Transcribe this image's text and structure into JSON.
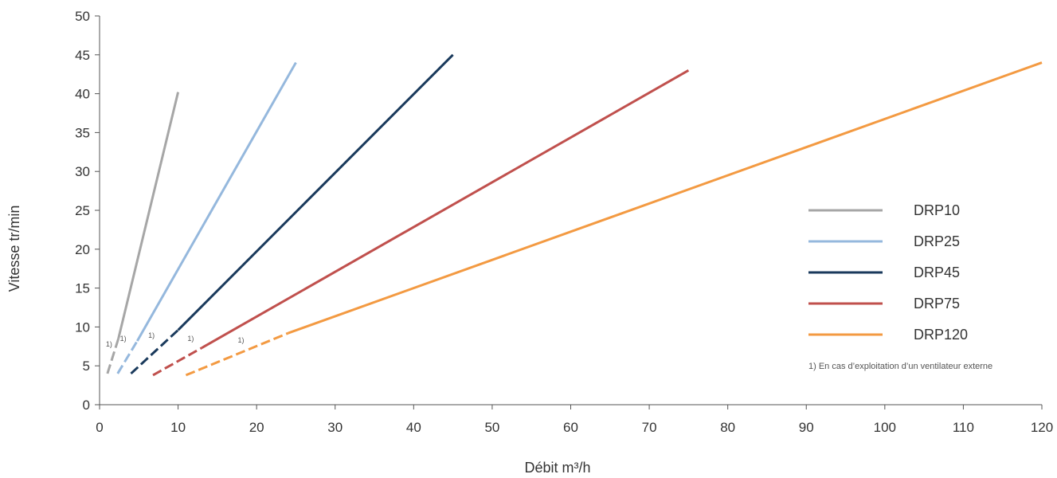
{
  "chart_data": {
    "type": "line",
    "xlabel": "Débit m³/h",
    "ylabel": "Vitesse tr/min",
    "xlim": [
      0,
      120
    ],
    "ylim": [
      0,
      50
    ],
    "x_ticks": [
      0,
      10,
      20,
      30,
      40,
      50,
      60,
      70,
      80,
      90,
      100,
      110,
      120
    ],
    "y_ticks": [
      0,
      5,
      10,
      15,
      20,
      25,
      30,
      35,
      40,
      45,
      50
    ],
    "grid": false,
    "legend_position": "right",
    "series": [
      {
        "name": "DRP10",
        "color": "#a6a6a6",
        "dashed": {
          "x": [
            1,
            2.4
          ],
          "y": [
            4,
            8.5
          ]
        },
        "solid": {
          "x": [
            2.4,
            10
          ],
          "y": [
            8.5,
            40.2
          ]
        },
        "marker": {
          "x": 0.8,
          "y": 7.5,
          "text": "1)"
        }
      },
      {
        "name": "DRP25",
        "color": "#95b8dd",
        "dashed": {
          "x": [
            2.3,
            4.8
          ],
          "y": [
            4,
            8.2
          ]
        },
        "solid": {
          "x": [
            4.8,
            25
          ],
          "y": [
            8.2,
            44
          ]
        },
        "marker": {
          "x": 2.6,
          "y": 8.2,
          "text": "1)"
        }
      },
      {
        "name": "DRP45",
        "color": "#1a3a5c",
        "dashed": {
          "x": [
            4,
            10
          ],
          "y": [
            4,
            9.6
          ]
        },
        "solid": {
          "x": [
            10,
            45
          ],
          "y": [
            9.6,
            45
          ]
        },
        "marker": {
          "x": 6.2,
          "y": 8.6,
          "text": "1)"
        }
      },
      {
        "name": "DRP75",
        "color": "#c0504d",
        "dashed": {
          "x": [
            6.8,
            13
          ],
          "y": [
            3.8,
            7.3
          ]
        },
        "solid": {
          "x": [
            13,
            75
          ],
          "y": [
            7.3,
            43
          ]
        },
        "marker": {
          "x": 11.2,
          "y": 8.2,
          "text": "1)"
        }
      },
      {
        "name": "DRP120",
        "color": "#f39a42",
        "dashed": {
          "x": [
            11,
            24
          ],
          "y": [
            3.8,
            9.2
          ]
        },
        "solid": {
          "x": [
            24,
            120
          ],
          "y": [
            9.2,
            44
          ]
        },
        "marker": {
          "x": 17.6,
          "y": 8.0,
          "text": "1)"
        }
      }
    ],
    "footnote": "1) En cas d’exploitation d’un ventilateur externe"
  }
}
